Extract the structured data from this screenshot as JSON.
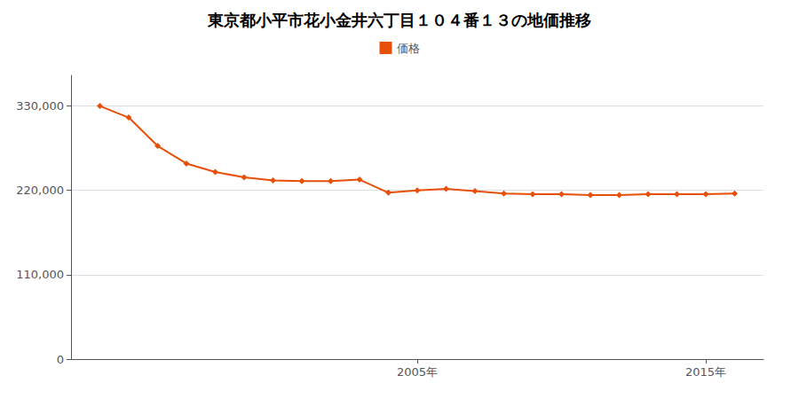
{
  "chart_data": {
    "type": "line",
    "title": "東京都小平市花小金井六丁目１０４番１３の地価推移",
    "x": [
      1994,
      1995,
      1996,
      1997,
      1998,
      1999,
      2000,
      2001,
      2002,
      2003,
      2004,
      2005,
      2006,
      2007,
      2008,
      2009,
      2010,
      2011,
      2012,
      2013,
      2014,
      2015,
      2016
    ],
    "series": [
      {
        "name": "価格",
        "color": "#e8500a",
        "marker": "diamond",
        "values": [
          330000,
          315000,
          278000,
          255000,
          244000,
          237000,
          233000,
          232000,
          232000,
          234000,
          217000,
          220000,
          222000,
          219000,
          216000,
          215000,
          215000,
          214000,
          214000,
          215000,
          215000,
          215000,
          216000
        ]
      }
    ],
    "xlim": [
      1993,
      2017
    ],
    "xticks": [
      {
        "value": 2005,
        "label": "2005年"
      },
      {
        "value": 2015,
        "label": "2015年"
      }
    ],
    "ylim": [
      0,
      370000
    ],
    "yticks": [
      0,
      {
        "value": 110000,
        "label": "110,000"
      },
      {
        "value": 220000,
        "label": "220,000"
      },
      {
        "value": 330000,
        "label": "330,000"
      }
    ],
    "grid": true,
    "legend": "top"
  }
}
